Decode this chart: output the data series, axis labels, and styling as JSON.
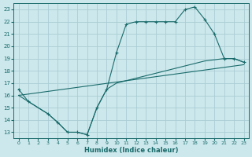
{
  "xlabel": "Humidex (Indice chaleur)",
  "bg_color": "#cce8ec",
  "grid_color": "#aacdd4",
  "line_color": "#1a6b6b",
  "xlim": [
    -0.5,
    23.5
  ],
  "ylim": [
    12.5,
    23.5
  ],
  "xticks": [
    0,
    1,
    2,
    3,
    4,
    5,
    6,
    7,
    8,
    9,
    10,
    11,
    12,
    13,
    14,
    15,
    16,
    17,
    18,
    19,
    20,
    21,
    22,
    23
  ],
  "yticks": [
    13,
    14,
    15,
    16,
    17,
    18,
    19,
    20,
    21,
    22,
    23
  ],
  "line1_x": [
    0,
    1,
    3,
    4,
    5,
    6,
    7,
    8,
    9,
    10,
    11,
    12,
    13,
    14,
    15,
    16,
    17,
    18,
    19,
    20,
    21,
    22,
    23
  ],
  "line1_y": [
    16.5,
    15.5,
    14.5,
    13.8,
    13.0,
    13.0,
    12.8,
    15.0,
    16.5,
    19.5,
    21.8,
    22.0,
    22.0,
    22.0,
    22.0,
    22.0,
    23.0,
    23.2,
    22.2,
    21.0,
    19.0,
    19.0,
    18.7
  ],
  "line2_x": [
    0,
    23
  ],
  "line2_y": [
    16.0,
    18.5
  ],
  "line3_x": [
    0,
    1,
    3,
    4,
    5,
    6,
    7,
    8,
    9,
    10,
    11,
    12,
    13,
    14,
    15,
    16,
    17,
    18,
    19,
    20,
    21,
    22,
    23
  ],
  "line3_y": [
    16.0,
    15.5,
    14.5,
    13.8,
    13.0,
    13.0,
    12.8,
    15.0,
    16.5,
    17.0,
    17.2,
    17.4,
    17.6,
    17.8,
    18.0,
    18.2,
    18.4,
    18.6,
    18.8,
    18.9,
    19.0,
    19.0,
    18.7
  ]
}
